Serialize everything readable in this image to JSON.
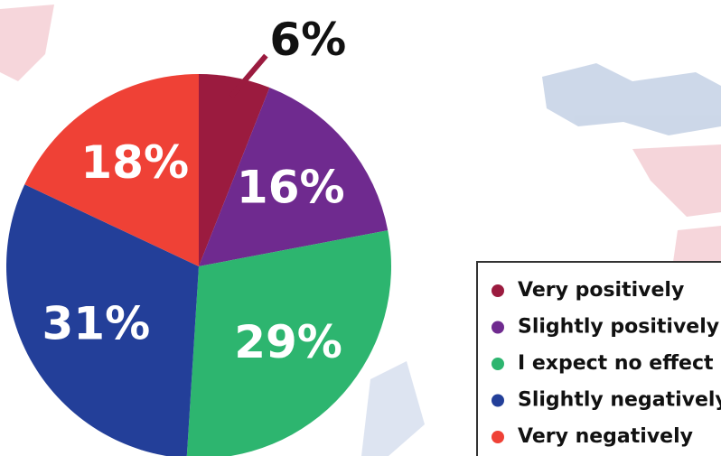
{
  "chart_data": {
    "type": "pie",
    "categories": [
      "Very positively",
      "Slightly positively",
      "I expect no effect",
      "Slightly negatively",
      "Very negatively"
    ],
    "values": [
      6,
      16,
      29,
      31,
      18
    ],
    "value_labels": [
      "6%",
      "16%",
      "29%",
      "31%",
      "18%"
    ],
    "colors": [
      "#9b1b3f",
      "#6f2a8f",
      "#2db56f",
      "#233f99",
      "#ef4136"
    ],
    "legend": "bottom-right"
  }
}
